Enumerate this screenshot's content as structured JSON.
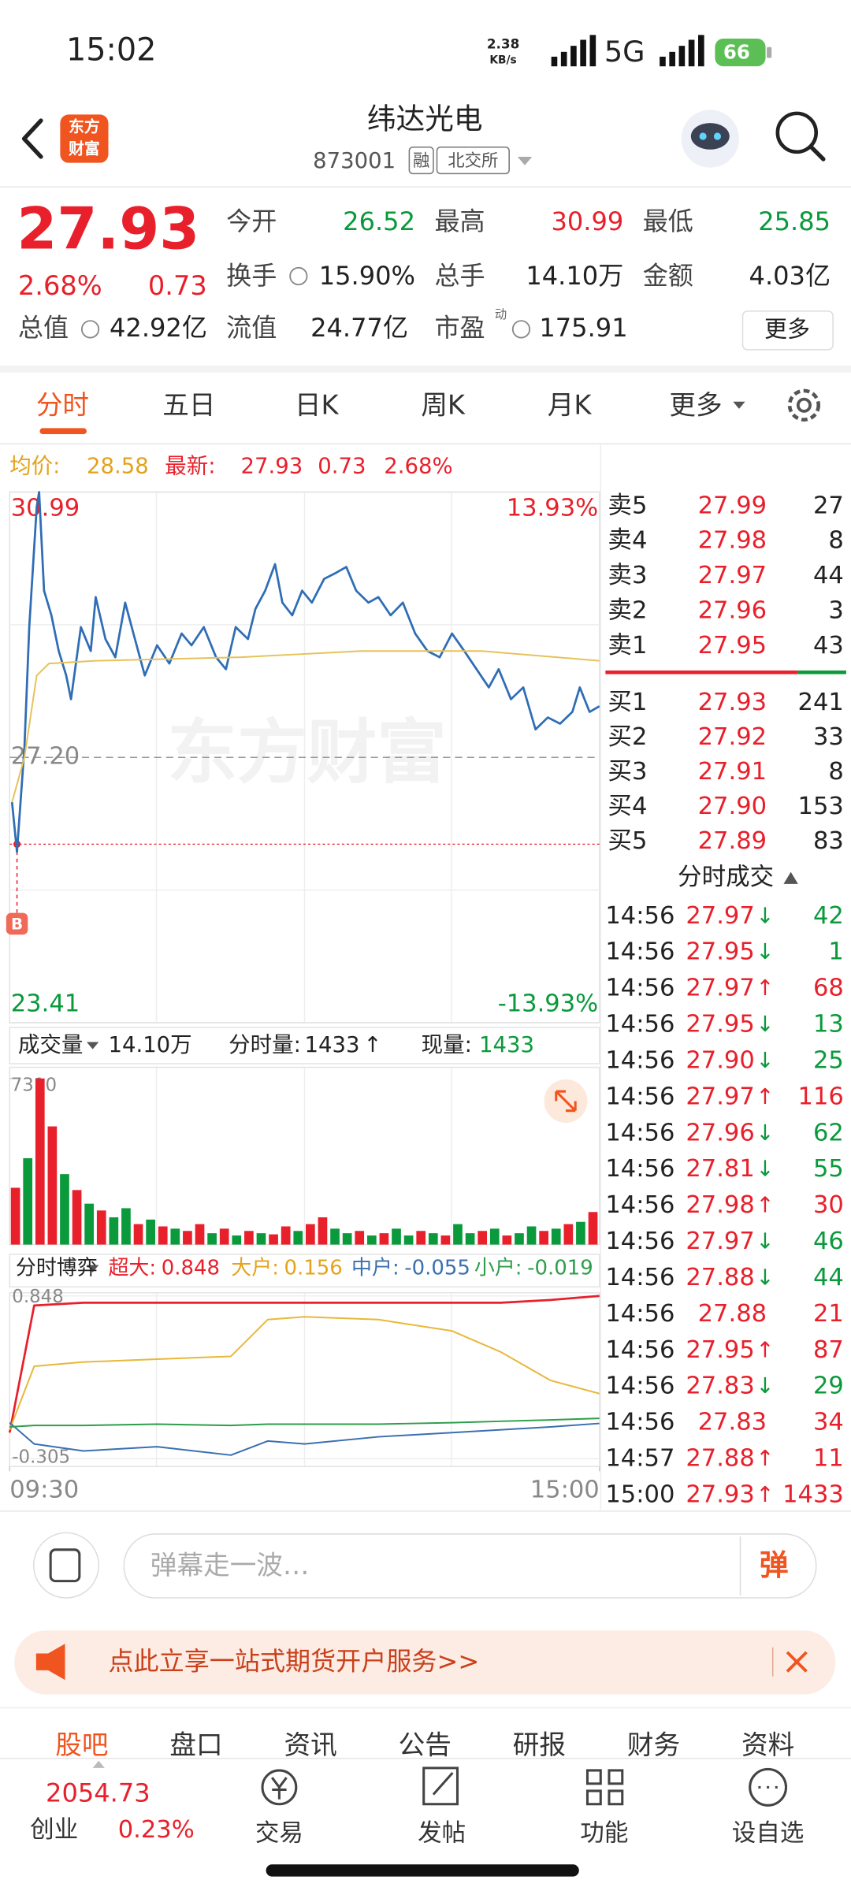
{
  "status_bar": {
    "time": "15:02",
    "net_speed": "2.38",
    "net_unit": "KB/s",
    "network": "5G",
    "battery": "66"
  },
  "header": {
    "logo_lines": [
      "东方",
      "财富"
    ],
    "title": "纬达光电",
    "code": "873001",
    "badges": [
      "融",
      "北交所"
    ]
  },
  "quote": {
    "price": "27.93",
    "change_pct": "2.68%",
    "change": "0.73",
    "stats": [
      {
        "label": "今开",
        "value": "26.52",
        "color": "#0a9a3c"
      },
      {
        "label": "最高",
        "value": "30.99",
        "color": "#e8202b"
      },
      {
        "label": "最低",
        "value": "25.85",
        "color": "#0a9a3c"
      },
      {
        "label": "换手",
        "value": "15.90%"
      },
      {
        "label": "总手",
        "value": "14.10万"
      },
      {
        "label": "金额",
        "value": "4.03亿"
      },
      {
        "label": "总值",
        "value": "42.92亿"
      },
      {
        "label": "流值",
        "value": "24.77亿"
      },
      {
        "label": "市盈",
        "superscript": "动",
        "value": "175.91"
      }
    ],
    "more_button": "更多"
  },
  "tabs": [
    "分时",
    "五日",
    "日K",
    "周K",
    "月K",
    "更多"
  ],
  "info_bar": {
    "avg_label": "均价:",
    "avg": "28.58",
    "latest_label": "最新:",
    "latest": "27.93",
    "change": "0.73",
    "change_pct": "2.68%"
  },
  "watermark": "东方财富",
  "chart_data": [
    {
      "type": "line",
      "xlim": [
        0,
        240
      ],
      "ylim": [
        23.41,
        30.99
      ],
      "yticks": [
        30.99,
        {
          "value": 27.2,
          "label": "27.20"
        },
        23.41
      ],
      "y2lim": [
        -13.93,
        13.93
      ],
      "y2ticks": [
        {
          "value": 13.93,
          "label": "13.93%"
        },
        {
          "value": -13.93,
          "label": "-13.93%"
        }
      ],
      "series": [
        {
          "color": "#2f6db5",
          "x": [
            1,
            3,
            6,
            8,
            11,
            12,
            14,
            17,
            20,
            23,
            25,
            29,
            33,
            35,
            39,
            43,
            47,
            51,
            55,
            60,
            65,
            70,
            74,
            79,
            84,
            88,
            92,
            97,
            100,
            104,
            108,
            111,
            115,
            119,
            123,
            128,
            133,
            137,
            141,
            146,
            150,
            155,
            160,
            165,
            170,
            175,
            180,
            185,
            190,
            195,
            199,
            204,
            209,
            214,
            219,
            224,
            229,
            232,
            236,
            240
          ],
          "values": [
            26.56,
            25.85,
            27.34,
            29.06,
            30.78,
            30.99,
            29.58,
            29.23,
            28.72,
            28.37,
            28.03,
            29.06,
            28.72,
            29.49,
            28.89,
            28.63,
            29.41,
            28.89,
            28.37,
            28.8,
            28.54,
            28.97,
            28.8,
            29.06,
            28.63,
            28.46,
            29.06,
            28.89,
            29.32,
            29.58,
            29.96,
            29.41,
            29.23,
            29.58,
            29.41,
            29.75,
            29.84,
            29.92,
            29.58,
            29.41,
            29.49,
            29.23,
            29.41,
            28.97,
            28.72,
            28.63,
            28.97,
            28.72,
            28.46,
            28.2,
            28.46,
            28.03,
            28.2,
            27.6,
            27.77,
            27.68,
            27.85,
            28.2,
            27.85,
            27.93
          ]
        },
        {
          "color": "#e6c25a",
          "x": [
            1,
            6,
            11,
            16,
            35,
            94,
            143,
            192,
            240
          ],
          "values": [
            26.56,
            27.2,
            28.37,
            28.54,
            28.58,
            28.63,
            28.72,
            28.72,
            28.58
          ]
        }
      ],
      "marker": {
        "label": "B",
        "x": 3,
        "value": 25.96
      }
    },
    {
      "type": "bar",
      "xlim": [
        0,
        240
      ],
      "ylim": [
        0,
        7800
      ],
      "yticks": [
        7310
      ],
      "x": [
        0,
        5,
        10,
        15,
        20,
        25,
        30,
        35,
        40,
        45,
        50,
        55,
        60,
        65,
        70,
        75,
        80,
        85,
        90,
        95,
        100,
        105,
        110,
        115,
        120,
        125,
        130,
        135,
        140,
        145,
        150,
        155,
        160,
        165,
        170,
        175,
        180,
        185,
        190,
        195,
        200,
        205,
        210,
        215,
        220,
        225,
        230,
        235
      ],
      "values": [
        2500,
        3800,
        7310,
        5200,
        3100,
        2400,
        1800,
        1500,
        1200,
        1600,
        900,
        1100,
        800,
        700,
        600,
        900,
        500,
        700,
        400,
        600,
        500,
        450,
        800,
        600,
        900,
        1200,
        700,
        500,
        600,
        400,
        500,
        700,
        400,
        600,
        500,
        400,
        900,
        500,
        600,
        700,
        400,
        500,
        800,
        600,
        700,
        900,
        1000,
        1433
      ],
      "colors": [
        "#e8202b",
        "#0a9a3c",
        "#e8202b",
        "#e8202b",
        "#0a9a3c",
        "#e8202b",
        "#0a9a3c",
        "#e8202b",
        "#0a9a3c",
        "#0a9a3c",
        "#e8202b",
        "#0a9a3c",
        "#e8202b",
        "#0a9a3c",
        "#e8202b",
        "#e8202b",
        "#0a9a3c",
        "#e8202b",
        "#0a9a3c",
        "#e8202b",
        "#0a9a3c",
        "#e8202b",
        "#e8202b",
        "#0a9a3c",
        "#e8202b",
        "#e8202b",
        "#0a9a3c",
        "#0a9a3c",
        "#e8202b",
        "#0a9a3c",
        "#e8202b",
        "#0a9a3c",
        "#0a9a3c",
        "#e8202b",
        "#0a9a3c",
        "#e8202b",
        "#0a9a3c",
        "#0a9a3c",
        "#e8202b",
        "#0a9a3c",
        "#e8202b",
        "#0a9a3c",
        "#0a9a3c",
        "#e8202b",
        "#0a9a3c",
        "#e8202b",
        "#0a9a3c",
        "#e8202b"
      ]
    },
    {
      "type": "line",
      "xlim": [
        0,
        240
      ],
      "ylim": [
        -0.36,
        0.87
      ],
      "yticks": [
        0.848,
        -0.305
      ],
      "xticks": [
        {
          "value": 0,
          "label": "09:30"
        },
        {
          "value": 240,
          "label": "15:00"
        }
      ],
      "series": [
        {
          "color": "#e8202b",
          "x": [
            0,
            10,
            30,
            60,
            90,
            105,
            120,
            150,
            180,
            200,
            220,
            240
          ],
          "values": [
            -0.12,
            0.78,
            0.8,
            0.8,
            0.8,
            0.8,
            0.8,
            0.8,
            0.8,
            0.8,
            0.82,
            0.848
          ]
        },
        {
          "color": "#e8b83a",
          "x": [
            0,
            10,
            30,
            60,
            90,
            105,
            120,
            150,
            180,
            200,
            220,
            240
          ],
          "values": [
            -0.1,
            0.35,
            0.38,
            0.4,
            0.42,
            0.68,
            0.7,
            0.68,
            0.6,
            0.45,
            0.25,
            0.156
          ]
        },
        {
          "color": "#3a6fb0",
          "x": [
            0,
            10,
            30,
            60,
            90,
            105,
            120,
            150,
            180,
            200,
            220,
            240
          ],
          "values": [
            -0.05,
            -0.2,
            -0.25,
            -0.22,
            -0.28,
            -0.18,
            -0.2,
            -0.15,
            -0.12,
            -0.1,
            -0.08,
            -0.055
          ]
        },
        {
          "color": "#2e9e4b",
          "x": [
            0,
            10,
            30,
            60,
            90,
            105,
            120,
            150,
            180,
            200,
            220,
            240
          ],
          "values": [
            -0.08,
            -0.07,
            -0.07,
            -0.06,
            -0.07,
            -0.06,
            -0.06,
            -0.06,
            -0.05,
            -0.04,
            -0.03,
            -0.019
          ]
        }
      ]
    }
  ],
  "order_book": {
    "asks": [
      {
        "label": "卖5",
        "price": "27.99",
        "volume": "27"
      },
      {
        "label": "卖4",
        "price": "27.98",
        "volume": "8"
      },
      {
        "label": "卖3",
        "price": "27.97",
        "volume": "44"
      },
      {
        "label": "卖2",
        "price": "27.96",
        "volume": "3"
      },
      {
        "label": "卖1",
        "price": "27.95",
        "volume": "43"
      }
    ],
    "bids": [
      {
        "label": "买1",
        "price": "27.93",
        "volume": "241"
      },
      {
        "label": "买2",
        "price": "27.92",
        "volume": "33"
      },
      {
        "label": "买3",
        "price": "27.91",
        "volume": "8"
      },
      {
        "label": "买4",
        "price": "27.90",
        "volume": "153"
      },
      {
        "label": "买5",
        "price": "27.89",
        "volume": "83"
      }
    ]
  },
  "trades": {
    "title": "分时成交",
    "rows": [
      {
        "time": "14:56",
        "price": "27.97",
        "dir": "↓",
        "volume": "42"
      },
      {
        "time": "14:56",
        "price": "27.95",
        "dir": "↓",
        "volume": "1"
      },
      {
        "time": "14:56",
        "price": "27.97",
        "dir": "↑",
        "volume": "68"
      },
      {
        "time": "14:56",
        "price": "27.95",
        "dir": "↓",
        "volume": "13"
      },
      {
        "time": "14:56",
        "price": "27.90",
        "dir": "↓",
        "volume": "25"
      },
      {
        "time": "14:56",
        "price": "27.97",
        "dir": "↑",
        "volume": "116"
      },
      {
        "time": "14:56",
        "price": "27.96",
        "dir": "↓",
        "volume": "62"
      },
      {
        "time": "14:56",
        "price": "27.81",
        "dir": "↓",
        "volume": "55"
      },
      {
        "time": "14:56",
        "price": "27.98",
        "dir": "↑",
        "volume": "30"
      },
      {
        "time": "14:56",
        "price": "27.97",
        "dir": "↓",
        "volume": "46"
      },
      {
        "time": "14:56",
        "price": "27.88",
        "dir": "↓",
        "volume": "44"
      },
      {
        "time": "14:56",
        "price": "27.88",
        "volume": "21"
      },
      {
        "time": "14:56",
        "price": "27.95",
        "dir": "↑",
        "volume": "87"
      },
      {
        "time": "14:56",
        "price": "27.83",
        "dir": "↓",
        "volume": "29"
      },
      {
        "time": "14:56",
        "price": "27.83",
        "volume": "34"
      },
      {
        "time": "14:57",
        "price": "27.88",
        "dir": "↑",
        "volume": "11"
      },
      {
        "time": "15:00",
        "price": "27.93",
        "dir": "↑",
        "volume": "1433"
      }
    ]
  },
  "volume_header": {
    "label": "成交量",
    "total": "14.10万",
    "period_label": "分时量:",
    "period": "1433",
    "arrow": "↑",
    "now_label": "现量:",
    "now": "1433"
  },
  "fund_header": {
    "label": "分时博弈",
    "items": [
      {
        "label": "超大:",
        "value": "0.848",
        "color": "#e8202b"
      },
      {
        "label": "大户:",
        "value": "0.156",
        "color": "#e6a21a"
      },
      {
        "label": "中户:",
        "value": "-0.055",
        "color": "#3a6fb0"
      },
      {
        "label": "小户:",
        "value": "-0.019",
        "color": "#2e9e4b"
      }
    ]
  },
  "comment_bar": {
    "placeholder": "弹幕走一波…",
    "button": "弹"
  },
  "banner": "点此立享一站式期货开户服务>>",
  "bottom_tabs": [
    "股吧",
    "盘口",
    "资讯",
    "公告",
    "研报",
    "财务",
    "资料"
  ],
  "nav": {
    "index": {
      "value": "2054.73",
      "name": "创业",
      "change": "0.23%"
    },
    "items": [
      "交易",
      "发帖",
      "功能",
      "设自选"
    ]
  }
}
